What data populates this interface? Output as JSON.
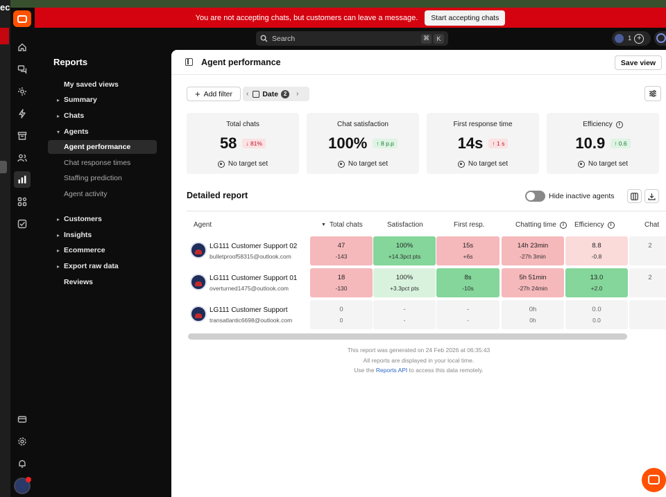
{
  "outer": {
    "partial_text": "ecl"
  },
  "banner": {
    "message": "You are not accepting chats, but customers can leave a message.",
    "button": "Start accepting chats"
  },
  "header": {
    "search_placeholder": "Search",
    "shortcut_keys": [
      "⌘",
      "K"
    ],
    "notif_count": "1"
  },
  "rail": {
    "icons": [
      "home-icon",
      "chats-icon",
      "activity-icon",
      "automation-icon",
      "archive-icon",
      "team-icon",
      "reports-icon",
      "apps-icon",
      "tickets-icon",
      "billing-icon",
      "settings-icon",
      "notifications-icon"
    ]
  },
  "sidebar": {
    "title": "Reports",
    "items": [
      {
        "label": "My saved views"
      },
      {
        "label": "Summary"
      },
      {
        "label": "Chats"
      },
      {
        "label": "Agents"
      },
      {
        "label": "Agent performance"
      },
      {
        "label": "Chat response times"
      },
      {
        "label": "Staffing prediction"
      },
      {
        "label": "Agent activity"
      },
      {
        "label": "Customers"
      },
      {
        "label": "Insights"
      },
      {
        "label": "Ecommerce"
      },
      {
        "label": "Export raw data"
      },
      {
        "label": "Reviews"
      }
    ]
  },
  "main": {
    "title": "Agent performance",
    "save_view": "Save view",
    "add_filter": "Add filter",
    "date_filter": "Date",
    "date_filter_count": "2"
  },
  "kpis": [
    {
      "label": "Total chats",
      "value": "58",
      "delta": "↓ 81%",
      "delta_type": "bad",
      "target": "No target set"
    },
    {
      "label": "Chat satisfaction",
      "value": "100%",
      "delta": "↑ 8 p.p",
      "delta_type": "good",
      "target": "No target set"
    },
    {
      "label": "First response time",
      "value": "14s",
      "delta": "↑ 1 s",
      "delta_type": "bad",
      "target": "No target set"
    },
    {
      "label": "Efficiency",
      "value": "10.9",
      "delta": "↑ 0.6",
      "delta_type": "good",
      "target": "No target set"
    }
  ],
  "report": {
    "title": "Detailed report",
    "hide_inactive": "Hide inactive agents",
    "columns": [
      "Agent",
      "Total chats",
      "Satisfaction",
      "First resp.",
      "Chatting time",
      "Efficiency",
      "Chat"
    ],
    "rows": [
      {
        "name": "LG111 Customer Support 02",
        "email": "bulletproof58315@outlook.com",
        "cells": [
          {
            "v": "47",
            "d": "-143",
            "c": "red"
          },
          {
            "v": "100%",
            "d": "+14.3pct pts",
            "c": "green"
          },
          {
            "v": "15s",
            "d": "+6s",
            "c": "red"
          },
          {
            "v": "14h 23min",
            "d": "-27h 3min",
            "c": "red"
          },
          {
            "v": "8.8",
            "d": "-0.8",
            "c": "lred"
          },
          {
            "v": "2",
            "d": "",
            "c": "neutral"
          }
        ]
      },
      {
        "name": "LG111 Customer Support 01",
        "email": "overturned1475@outlook.com",
        "cells": [
          {
            "v": "18",
            "d": "-130",
            "c": "red"
          },
          {
            "v": "100%",
            "d": "+3.3pct pts",
            "c": "lgreen"
          },
          {
            "v": "8s",
            "d": "-10s",
            "c": "green"
          },
          {
            "v": "5h 51min",
            "d": "-27h 24min",
            "c": "red"
          },
          {
            "v": "13.0",
            "d": "+2.0",
            "c": "green"
          },
          {
            "v": "2",
            "d": "",
            "c": "neutral"
          }
        ]
      },
      {
        "name": "LG111 Customer Support",
        "email": "transatlantic6698@outlook.com",
        "cells": [
          {
            "v": "0",
            "d": "0",
            "c": "neutral"
          },
          {
            "v": "-",
            "d": "-",
            "c": "neutral"
          },
          {
            "v": "-",
            "d": "-",
            "c": "neutral"
          },
          {
            "v": "0h",
            "d": "0h",
            "c": "neutral"
          },
          {
            "v": "0.0",
            "d": "0.0",
            "c": "neutral"
          },
          {
            "v": "",
            "d": "",
            "c": "neutral"
          }
        ]
      }
    ],
    "footer_generated": "This report was generated on 24 Feb 2026 at 06:35:43",
    "footer_local": "All reports are displayed in your local time.",
    "footer_api_pre": "Use the ",
    "footer_api_link": "Reports API",
    "footer_api_post": " to access this data remotely."
  }
}
